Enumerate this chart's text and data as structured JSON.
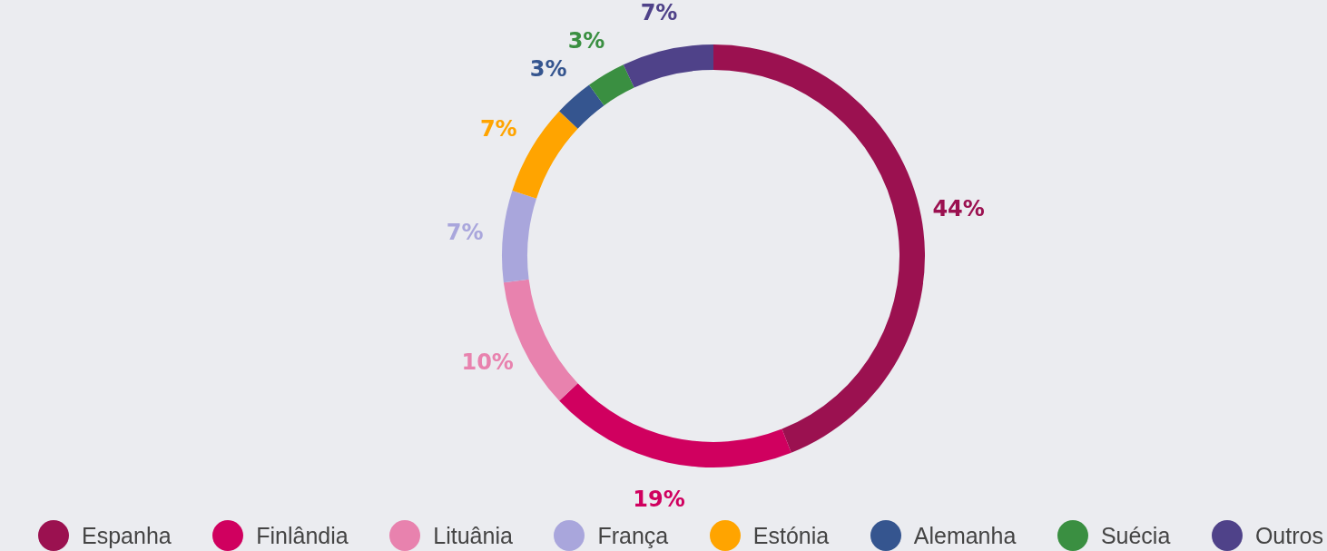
{
  "chart_data": {
    "type": "donut",
    "categories": [
      "Espanha",
      "Finlândia",
      "Lituânia",
      "França",
      "Estónia",
      "Alemanha",
      "Suécia",
      "Outros"
    ],
    "values": [
      44,
      19,
      10,
      7,
      7,
      3,
      3,
      7
    ],
    "colors": [
      "#9b1150",
      "#d0005f",
      "#e882ae",
      "#a9a6dc",
      "#ffa400",
      "#35558f",
      "#3a8f41",
      "#4f4289"
    ],
    "value_labels": [
      "44%",
      "19%",
      "10%",
      "7%",
      "7%",
      "3%",
      "3%",
      "7%"
    ],
    "legend": "bottom"
  }
}
